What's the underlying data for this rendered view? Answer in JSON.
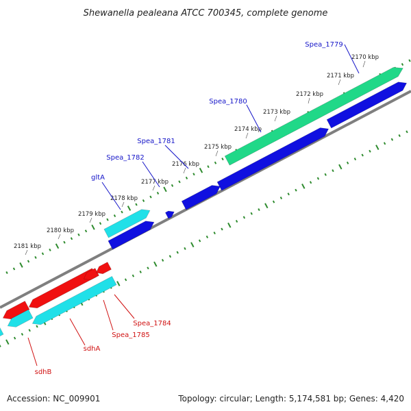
{
  "title": "Shewanella pealeana ATCC 700345, complete genome",
  "footer": {
    "accession": "Accession: NC_009901",
    "topology": "Topology: circular; Length: 5,174,581 bp; Genes: 4,420"
  },
  "colors": {
    "tick": "#2e8b2e",
    "backbone": "#7f7f7f",
    "forward_label": "#1414c8",
    "reverse_label": "#d01010",
    "gene_blue": "#1010e0",
    "gene_cyan": "#20e0e8",
    "gene_green": "#20d888",
    "gene_red": "#f01010"
  },
  "ticks": [
    {
      "label": "2170 kbp"
    },
    {
      "label": "2171 kbp"
    },
    {
      "label": "2172 kbp"
    },
    {
      "label": "2173 kbp"
    },
    {
      "label": "2174 kbp"
    },
    {
      "label": "2175 kbp"
    },
    {
      "label": "2176 kbp"
    },
    {
      "label": "2177 kbp"
    },
    {
      "label": "2178 kbp"
    },
    {
      "label": "2179 kbp"
    },
    {
      "label": "2180 kbp"
    },
    {
      "label": "2181 kbp"
    }
  ],
  "forward_labels": [
    {
      "text": "Spea_1779"
    },
    {
      "text": "Spea_1780"
    },
    {
      "text": "Spea_1781"
    },
    {
      "text": "Spea_1782"
    },
    {
      "text": "gltA"
    }
  ],
  "reverse_labels": [
    {
      "text": "Spea_1784"
    },
    {
      "text": "Spea_1785"
    },
    {
      "text": "sdhA"
    },
    {
      "text": "sdhB"
    }
  ]
}
